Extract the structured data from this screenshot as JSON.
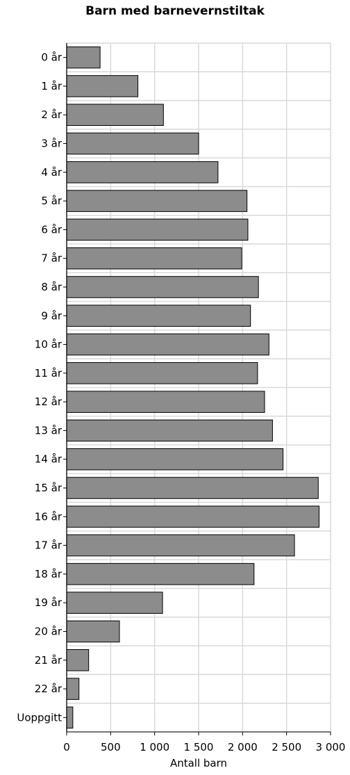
{
  "chart_data": {
    "type": "bar",
    "orientation": "horizontal",
    "title": "Barn med barnevernstiltak",
    "xlabel": "Antall barn",
    "ylabel": "",
    "xlim": [
      0,
      3000
    ],
    "xticks": [
      0,
      500,
      1000,
      1500,
      2000,
      2500,
      3000
    ],
    "xtick_labels": [
      "0",
      "500",
      "1 000",
      "1 500",
      "2 000",
      "2 500",
      "3 000"
    ],
    "grid": true,
    "bar_color": "#8c8c8c",
    "categories": [
      "0 år",
      "1 år",
      "2 år",
      "3 år",
      "4 år",
      "5 år",
      "6 år",
      "7 år",
      "8 år",
      "9 år",
      "10 år",
      "11 år",
      "12 år",
      "13 år",
      "14 år",
      "15 år",
      "16 år",
      "17 år",
      "18 år",
      "19 år",
      "20 år",
      "21 år",
      "22 år",
      "Uoppgitt"
    ],
    "values": [
      380,
      810,
      1100,
      1500,
      1720,
      2050,
      2060,
      1990,
      2180,
      2090,
      2300,
      2170,
      2250,
      2340,
      2460,
      2860,
      2870,
      2590,
      2130,
      1090,
      600,
      250,
      140,
      70
    ]
  }
}
